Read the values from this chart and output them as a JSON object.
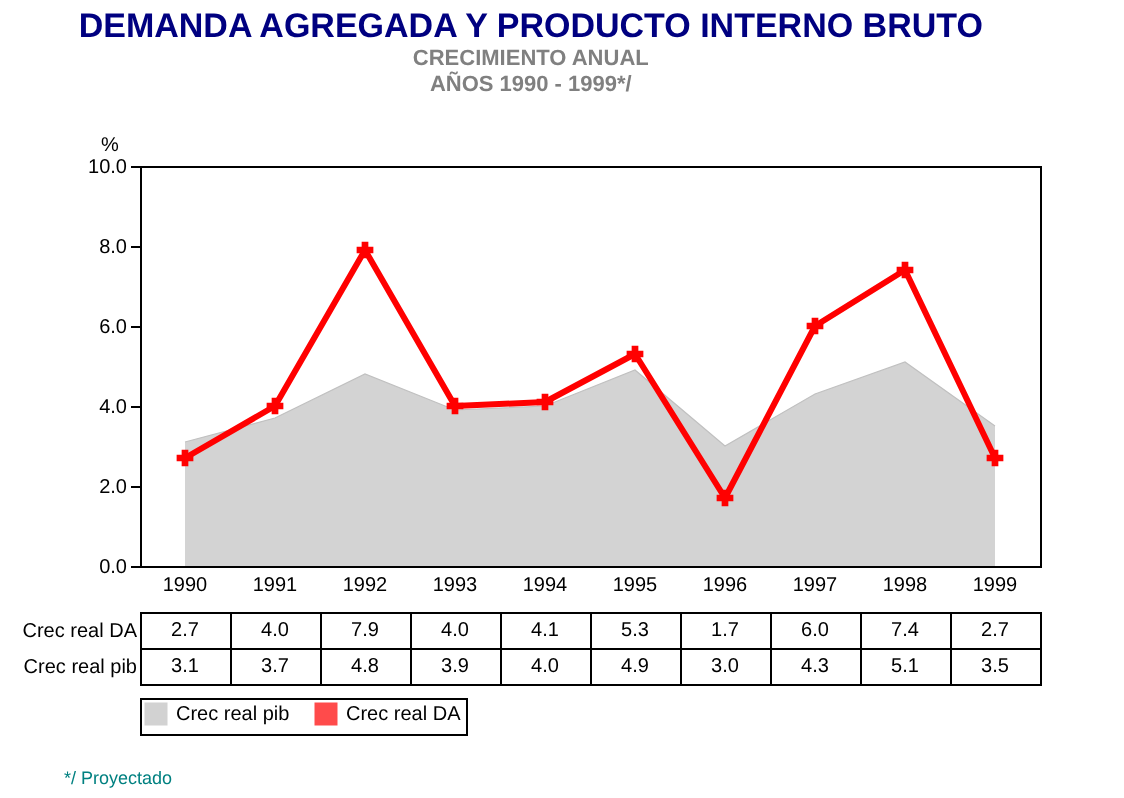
{
  "chart_data": {
    "type": "area",
    "title": "DEMANDA AGREGADA Y PRODUCTO INTERNO BRUTO",
    "subtitle": "CRECIMIENTO ANUAL\nAÑOS 1990 - 1999*/",
    "ylabel": "%",
    "categories": [
      "1990",
      "1991",
      "1992",
      "1993",
      "1994",
      "1995",
      "1996",
      "1997",
      "1998",
      "1999"
    ],
    "series": [
      {
        "name": "Crec real pib",
        "color": "#c0c0c0",
        "values": [
          3.1,
          3.7,
          4.8,
          3.9,
          4.0,
          4.9,
          3.0,
          4.3,
          5.1,
          3.5
        ],
        "value_labels": [
          "3.1",
          "3.7",
          "4.8",
          "3.9",
          "4.0",
          "4.9",
          "3.0",
          "4.3",
          "5.1",
          "3.5"
        ]
      },
      {
        "name": "Crec real DA",
        "type": "line",
        "color": "#ff0000",
        "marker": "cross",
        "values": [
          2.7,
          4.0,
          7.9,
          4.0,
          4.1,
          5.3,
          1.7,
          6.0,
          7.4,
          2.7
        ],
        "value_labels": [
          "2.7",
          "4.0",
          "7.9",
          "4.0",
          "4.1",
          "5.3",
          "1.7",
          "6.0",
          "7.4",
          "2.7"
        ]
      }
    ],
    "ylim": [
      0,
      10
    ],
    "yticks": [
      {
        "value": 0,
        "label": "0.0"
      },
      {
        "value": 2,
        "label": "2.0"
      },
      {
        "value": 4,
        "label": "4.0"
      },
      {
        "value": 6,
        "label": "6.0"
      },
      {
        "value": 8,
        "label": "8.0"
      },
      {
        "value": 10,
        "label": "10.0"
      }
    ],
    "grid": false,
    "legend": "bottom",
    "annotations": [
      "*/ Proyectado"
    ]
  }
}
